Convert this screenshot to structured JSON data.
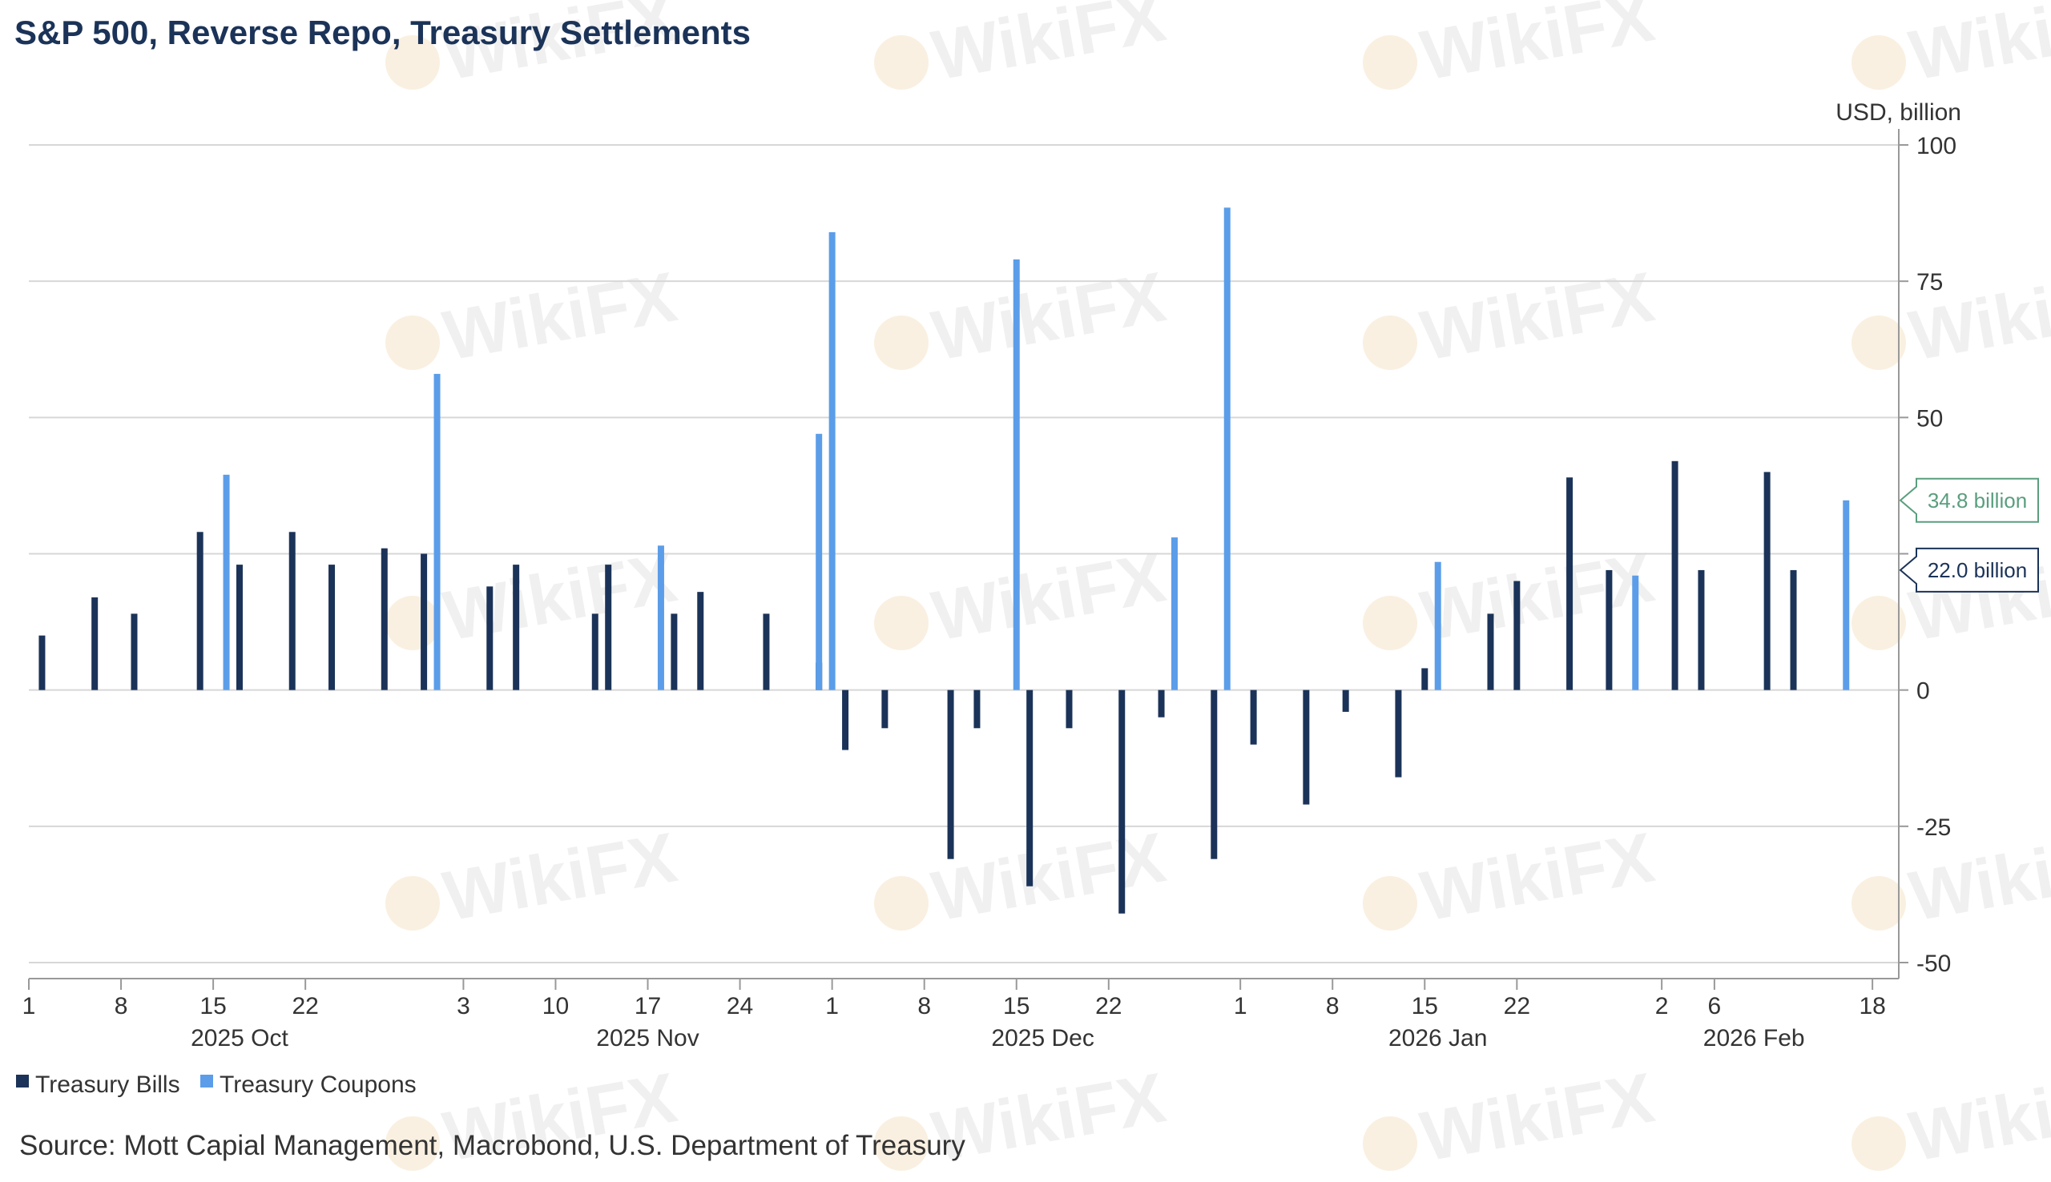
{
  "chart_data": {
    "type": "bar",
    "title": "S&P 500, Reverse Repo, Treasury Settlements",
    "unit_label": "USD, billion",
    "ylim": [
      -50,
      100
    ],
    "y_ticks": [
      100,
      75,
      50,
      25,
      0,
      -25,
      -50
    ],
    "y_tick_labels": [
      "100",
      "75",
      "50",
      "",
      "0",
      "-25",
      "-50"
    ],
    "x_day_ticks": [
      {
        "date": "2025-10-01",
        "label": "1"
      },
      {
        "date": "2025-10-08",
        "label": "8"
      },
      {
        "date": "2025-10-15",
        "label": "15"
      },
      {
        "date": "2025-10-22",
        "label": "22"
      },
      {
        "date": "2025-11-03",
        "label": "3"
      },
      {
        "date": "2025-11-10",
        "label": "10"
      },
      {
        "date": "2025-11-17",
        "label": "17"
      },
      {
        "date": "2025-11-24",
        "label": "24"
      },
      {
        "date": "2025-12-01",
        "label": "1"
      },
      {
        "date": "2025-12-08",
        "label": "8"
      },
      {
        "date": "2025-12-15",
        "label": "15"
      },
      {
        "date": "2025-12-22",
        "label": "22"
      },
      {
        "date": "2026-01-01",
        "label": "1"
      },
      {
        "date": "2026-01-08",
        "label": "8"
      },
      {
        "date": "2026-01-15",
        "label": "15"
      },
      {
        "date": "2026-01-22",
        "label": "22"
      },
      {
        "date": "2026-02-02",
        "label": "2"
      },
      {
        "date": "2026-02-06",
        "label": "6"
      },
      {
        "date": "2026-02-18",
        "label": "18"
      }
    ],
    "x_month_labels": [
      {
        "date": "2025-10-17",
        "label": "2025 Oct"
      },
      {
        "date": "2025-11-17",
        "label": "2025 Nov"
      },
      {
        "date": "2025-12-17",
        "label": "2025 Dec"
      },
      {
        "date": "2026-01-16",
        "label": "2026 Jan"
      },
      {
        "date": "2026-02-09",
        "label": "2026 Feb"
      }
    ],
    "x_range": [
      "2025-10-01",
      "2026-02-20"
    ],
    "series": [
      {
        "name": "Treasury Bills",
        "color": "#1b3358",
        "points": [
          {
            "date": "2025-10-02",
            "value": 10
          },
          {
            "date": "2025-10-06",
            "value": 17
          },
          {
            "date": "2025-10-09",
            "value": 14
          },
          {
            "date": "2025-10-14",
            "value": 29
          },
          {
            "date": "2025-10-17",
            "value": 23
          },
          {
            "date": "2025-10-21",
            "value": 29
          },
          {
            "date": "2025-10-24",
            "value": 23
          },
          {
            "date": "2025-10-28",
            "value": 26
          },
          {
            "date": "2025-10-31",
            "value": 25
          },
          {
            "date": "2025-11-05",
            "value": 19
          },
          {
            "date": "2025-11-07",
            "value": 23
          },
          {
            "date": "2025-11-13",
            "value": 14
          },
          {
            "date": "2025-11-14",
            "value": 23
          },
          {
            "date": "2025-11-19",
            "value": 14
          },
          {
            "date": "2025-11-21",
            "value": 18
          },
          {
            "date": "2025-11-26",
            "value": 14
          },
          {
            "date": "2025-11-30",
            "value": 5
          },
          {
            "date": "2025-12-02",
            "value": -11
          },
          {
            "date": "2025-12-05",
            "value": -7
          },
          {
            "date": "2025-12-10",
            "value": -31
          },
          {
            "date": "2025-12-12",
            "value": -7
          },
          {
            "date": "2025-12-16",
            "value": -36
          },
          {
            "date": "2025-12-19",
            "value": -7
          },
          {
            "date": "2025-12-23",
            "value": -41
          },
          {
            "date": "2025-12-26",
            "value": -5
          },
          {
            "date": "2025-12-30",
            "value": -31
          },
          {
            "date": "2026-01-02",
            "value": -10
          },
          {
            "date": "2026-01-06",
            "value": -21
          },
          {
            "date": "2026-01-09",
            "value": -4
          },
          {
            "date": "2026-01-13",
            "value": -16
          },
          {
            "date": "2026-01-15",
            "value": 4
          },
          {
            "date": "2026-01-20",
            "value": 14
          },
          {
            "date": "2026-01-22",
            "value": 20
          },
          {
            "date": "2026-01-26",
            "value": 39
          },
          {
            "date": "2026-01-29",
            "value": 22
          },
          {
            "date": "2026-02-03",
            "value": 42
          },
          {
            "date": "2026-02-05",
            "value": 22
          },
          {
            "date": "2026-02-10",
            "value": 40
          },
          {
            "date": "2026-02-12",
            "value": 22
          }
        ]
      },
      {
        "name": "Treasury Coupons",
        "color": "#5b9de9",
        "points": [
          {
            "date": "2025-10-16",
            "value": 39.5
          },
          {
            "date": "2025-11-01",
            "value": 58
          },
          {
            "date": "2025-11-18",
            "value": 26.5
          },
          {
            "date": "2025-11-30",
            "value": 47
          },
          {
            "date": "2025-12-01",
            "value": 84
          },
          {
            "date": "2025-12-15",
            "value": 79
          },
          {
            "date": "2025-12-27",
            "value": 28
          },
          {
            "date": "2025-12-31",
            "value": 88.5
          },
          {
            "date": "2026-01-16",
            "value": 23.5
          },
          {
            "date": "2026-01-31",
            "value": 21
          },
          {
            "date": "2026-02-16",
            "value": 34.8
          }
        ]
      }
    ],
    "callouts": [
      {
        "value": 34.8,
        "label": "34.8 billion",
        "color": "#5a9e7e"
      },
      {
        "value": 22.0,
        "label": "22.0 billion",
        "color": "#1b3358"
      }
    ],
    "legend": [
      {
        "label": "Treasury Bills",
        "color": "#1b3358"
      },
      {
        "label": "Treasury Coupons",
        "color": "#5b9de9"
      }
    ],
    "source": "Source: Mott Capial Management, Macrobond, U.S. Department of Treasury"
  },
  "watermark": {
    "text": "WikiFX"
  }
}
